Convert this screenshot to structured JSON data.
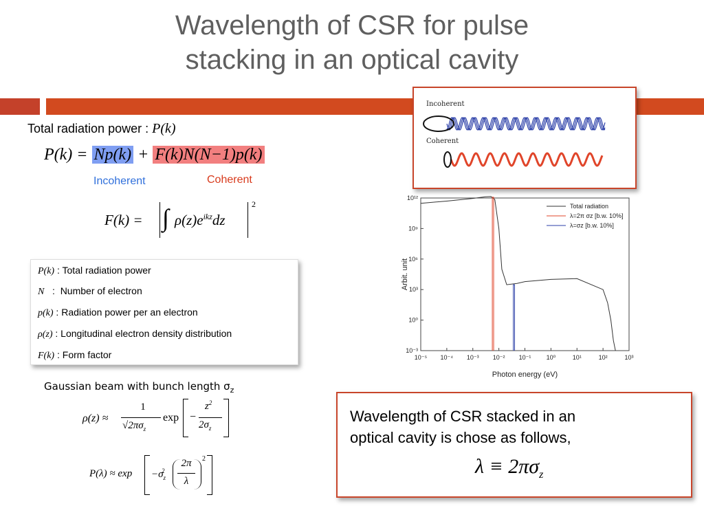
{
  "title": {
    "line1": "Wavelength of CSR for pulse",
    "line2": "stacking in an optical cavity"
  },
  "total_power": {
    "label": "Total radiation power :",
    "symbol": "P(k)"
  },
  "equation_main": {
    "lhs": "P(k) =",
    "incoherent_term": "Np(k)",
    "plus": "+",
    "coherent_term": "F(k)N(N−1)p(k)"
  },
  "labels": {
    "incoherent": "Incoherent",
    "coherent": "Coherent"
  },
  "form_factor_eq": {
    "lhs": "F(k) =",
    "integrand": "ρ(z)e",
    "exponent": "ikz",
    "dz": "dz",
    "power": "2"
  },
  "definitions": [
    {
      "symbol": "P(k)",
      "sep": " : ",
      "text": "Total radiation power"
    },
    {
      "symbol": "N",
      "sep": "   :  ",
      "text": "Number of electron"
    },
    {
      "symbol": "p(k)",
      "sep": " : ",
      "text": "Radiation power per an electron"
    },
    {
      "symbol": "ρ(z)",
      "sep": " : ",
      "text": "Longitudinal electron density distribution"
    },
    {
      "symbol": "F(k)",
      "sep": " : ",
      "text": "Form factor"
    }
  ],
  "gaussian": {
    "label": "Gaussian beam with bunch length σ",
    "sub": "z",
    "rho_lhs": "ρ(z) ≈",
    "rho_num": "1",
    "rho_den": "√2πσ",
    "exp": "exp",
    "rho_inner_num": "z",
    "rho_inner_den": "2σ",
    "P_lhs": "P(λ) ≈ exp",
    "P_inner_num": "2π",
    "P_inner_den": "λ"
  },
  "csr_box": {
    "line1": "Wavelength of CSR stacked in an",
    "line2": "optical cavity is chose as follows,",
    "eq_lhs": "λ ≡ 2πσ",
    "eq_sub": "z"
  },
  "wave_diagram": {
    "incoherent_label": "Incoherent",
    "coherent_label": "Coherent",
    "incoherent_color": "#2b3fa8",
    "coherent_color": "#e0452a"
  },
  "chart_data": {
    "type": "line",
    "xlabel": "Photon energy (eV)",
    "ylabel": "Arbit. unit",
    "xscale": "log",
    "yscale": "log",
    "xlim": [
      1e-05,
      1000
    ],
    "ylim": [
      0.001,
      1000000000000.0
    ],
    "x_ticks": [
      "10⁻⁵",
      "10⁻⁴",
      "10⁻³",
      "10⁻²",
      "10⁻¹",
      "10⁰",
      "10¹",
      "10²",
      "10³"
    ],
    "y_ticks": [
      "10⁻³",
      "10⁰",
      "10³",
      "10⁶",
      "10⁹",
      "10¹²"
    ],
    "legend_position": "top-right",
    "series": [
      {
        "name": "Total radiation",
        "color": "#333333",
        "x": [
          1e-05,
          0.0001,
          0.001,
          0.003,
          0.005,
          0.007,
          0.01,
          0.013,
          0.02,
          0.05,
          0.1,
          1,
          10,
          100,
          150,
          200,
          250,
          300
        ],
        "y": [
          300000000000.0,
          500000000000.0,
          900000000000.0,
          1300000000000.0,
          1400000000000.0,
          700000000000.0,
          1000000000.0,
          100000.0,
          3000.0,
          4000.0,
          6000.0,
          10000.0,
          12000.0,
          1000.0,
          50,
          1,
          0.01,
          0.001
        ]
      },
      {
        "name": "λ=2π σz   [b.w. 10%]",
        "color": "#e0452a",
        "x": [
          0.0056,
          0.0056,
          0.0063,
          0.0063
        ],
        "y": [
          0.001,
          1200000000000.0,
          1200000000000.0,
          0.001
        ]
      },
      {
        "name": "λ=σz   [b.w. 10%]",
        "color": "#2b3fa8",
        "x": [
          0.036,
          0.036,
          0.04,
          0.04
        ],
        "y": [
          0.001,
          3000.0,
          3000.0,
          0.001
        ]
      }
    ]
  }
}
